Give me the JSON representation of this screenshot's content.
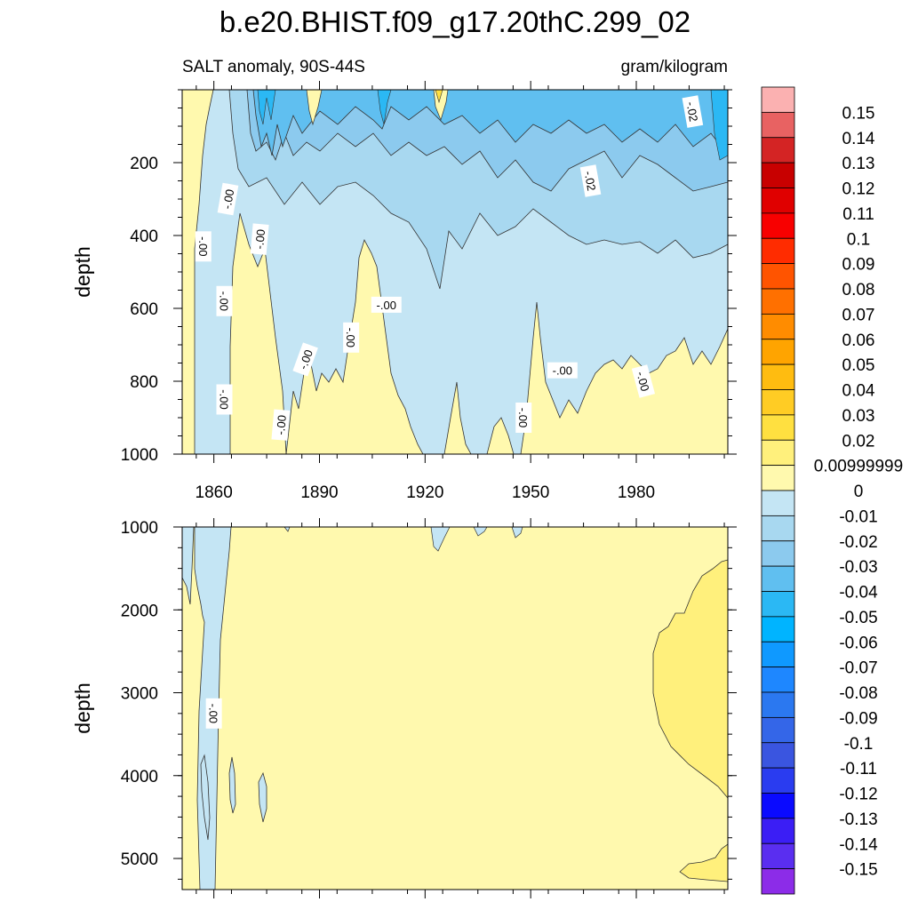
{
  "chart_data": {
    "type": "heatmap",
    "title": "b.e20.BHIST.f09_g17.20thC.299_02",
    "subtitle_left": "SALT anomaly, 90S-44S",
    "subtitle_right": "gram/kilogram",
    "ylabel": "depth",
    "x_ticks": [
      "1860",
      "1890",
      "1920",
      "1950",
      "1980"
    ],
    "x_range": [
      1851,
      2006
    ],
    "panels": [
      {
        "name": "upper",
        "ylim": [
          0,
          1000
        ],
        "y_ticks": [
          "200",
          "400",
          "600",
          "800",
          "1000"
        ],
        "contour_labels": [
          {
            "text": "-.00",
            "year": 1864,
            "depth": 300,
            "rotate": -80
          },
          {
            "text": "-.00",
            "year": 1857,
            "depth": 430,
            "rotate": 90
          },
          {
            "text": "-.00",
            "year": 1863,
            "depth": 580,
            "rotate": 90
          },
          {
            "text": "-.00",
            "year": 1863,
            "depth": 850,
            "rotate": 90
          },
          {
            "text": "-.00",
            "year": 1873,
            "depth": 410,
            "rotate": -85
          },
          {
            "text": "-.00",
            "year": 1879,
            "depth": 920,
            "rotate": -85
          },
          {
            "text": "-.00",
            "year": 1886,
            "depth": 740,
            "rotate": -70
          },
          {
            "text": "-.00",
            "year": 1899,
            "depth": 680,
            "rotate": 90
          },
          {
            "text": "-.00",
            "year": 1909,
            "depth": 590,
            "rotate": 0
          },
          {
            "text": "-.00",
            "year": 1948,
            "depth": 900,
            "rotate": 90
          },
          {
            "text": "-.00",
            "year": 1959,
            "depth": 770,
            "rotate": 0
          },
          {
            "text": "-.00",
            "year": 1982,
            "depth": 800,
            "rotate": 75
          },
          {
            "text": "-.02",
            "year": 1967,
            "depth": 250,
            "rotate": 80
          },
          {
            "text": "-.02",
            "year": 1996,
            "depth": 60,
            "rotate": 80
          }
        ]
      },
      {
        "name": "lower",
        "ylim": [
          1000,
          5375
        ],
        "y_ticks": [
          "1000",
          "2000",
          "3000",
          "4000",
          "5000"
        ],
        "contour_labels": [
          {
            "text": "-.00",
            "year": 1860,
            "depth": 3250,
            "rotate": 90
          }
        ]
      }
    ],
    "colorbar": {
      "labels": [
        "0.15",
        "0.14",
        "0.13",
        "0.12",
        "0.11",
        "0.1",
        "0.09",
        "0.08",
        "0.07",
        "0.06",
        "0.05",
        "0.04",
        "0.03",
        "0.02",
        "0.00999999",
        "0",
        "-0.01",
        "-0.02",
        "-0.03",
        "-0.04",
        "-0.05",
        "-0.06",
        "-0.07",
        "-0.08",
        "-0.09",
        "-0.1",
        "-0.11",
        "-0.12",
        "-0.13",
        "-0.14",
        "-0.15"
      ],
      "colors": [
        "#fbb1b1",
        "#e86262",
        "#d42424",
        "#c80000",
        "#e00000",
        "#f80000",
        "#ff2c00",
        "#ff5400",
        "#ff7000",
        "#ff8c00",
        "#ffa400",
        "#ffbc10",
        "#ffcc24",
        "#ffe040",
        "#fff07c",
        "#fff9ae",
        "#c4e5f4",
        "#a8d8f0",
        "#8ccaee",
        "#60bff0",
        "#2bb8f4",
        "#00b4ff",
        "#0f99ff",
        "#1e87ff",
        "#2b78f0",
        "#3466e8",
        "#3a55e0",
        "#2a3cf0",
        "#0a0aff",
        "#3b1ef5",
        "#5a2ef0",
        "#8c2ce8"
      ]
    }
  }
}
